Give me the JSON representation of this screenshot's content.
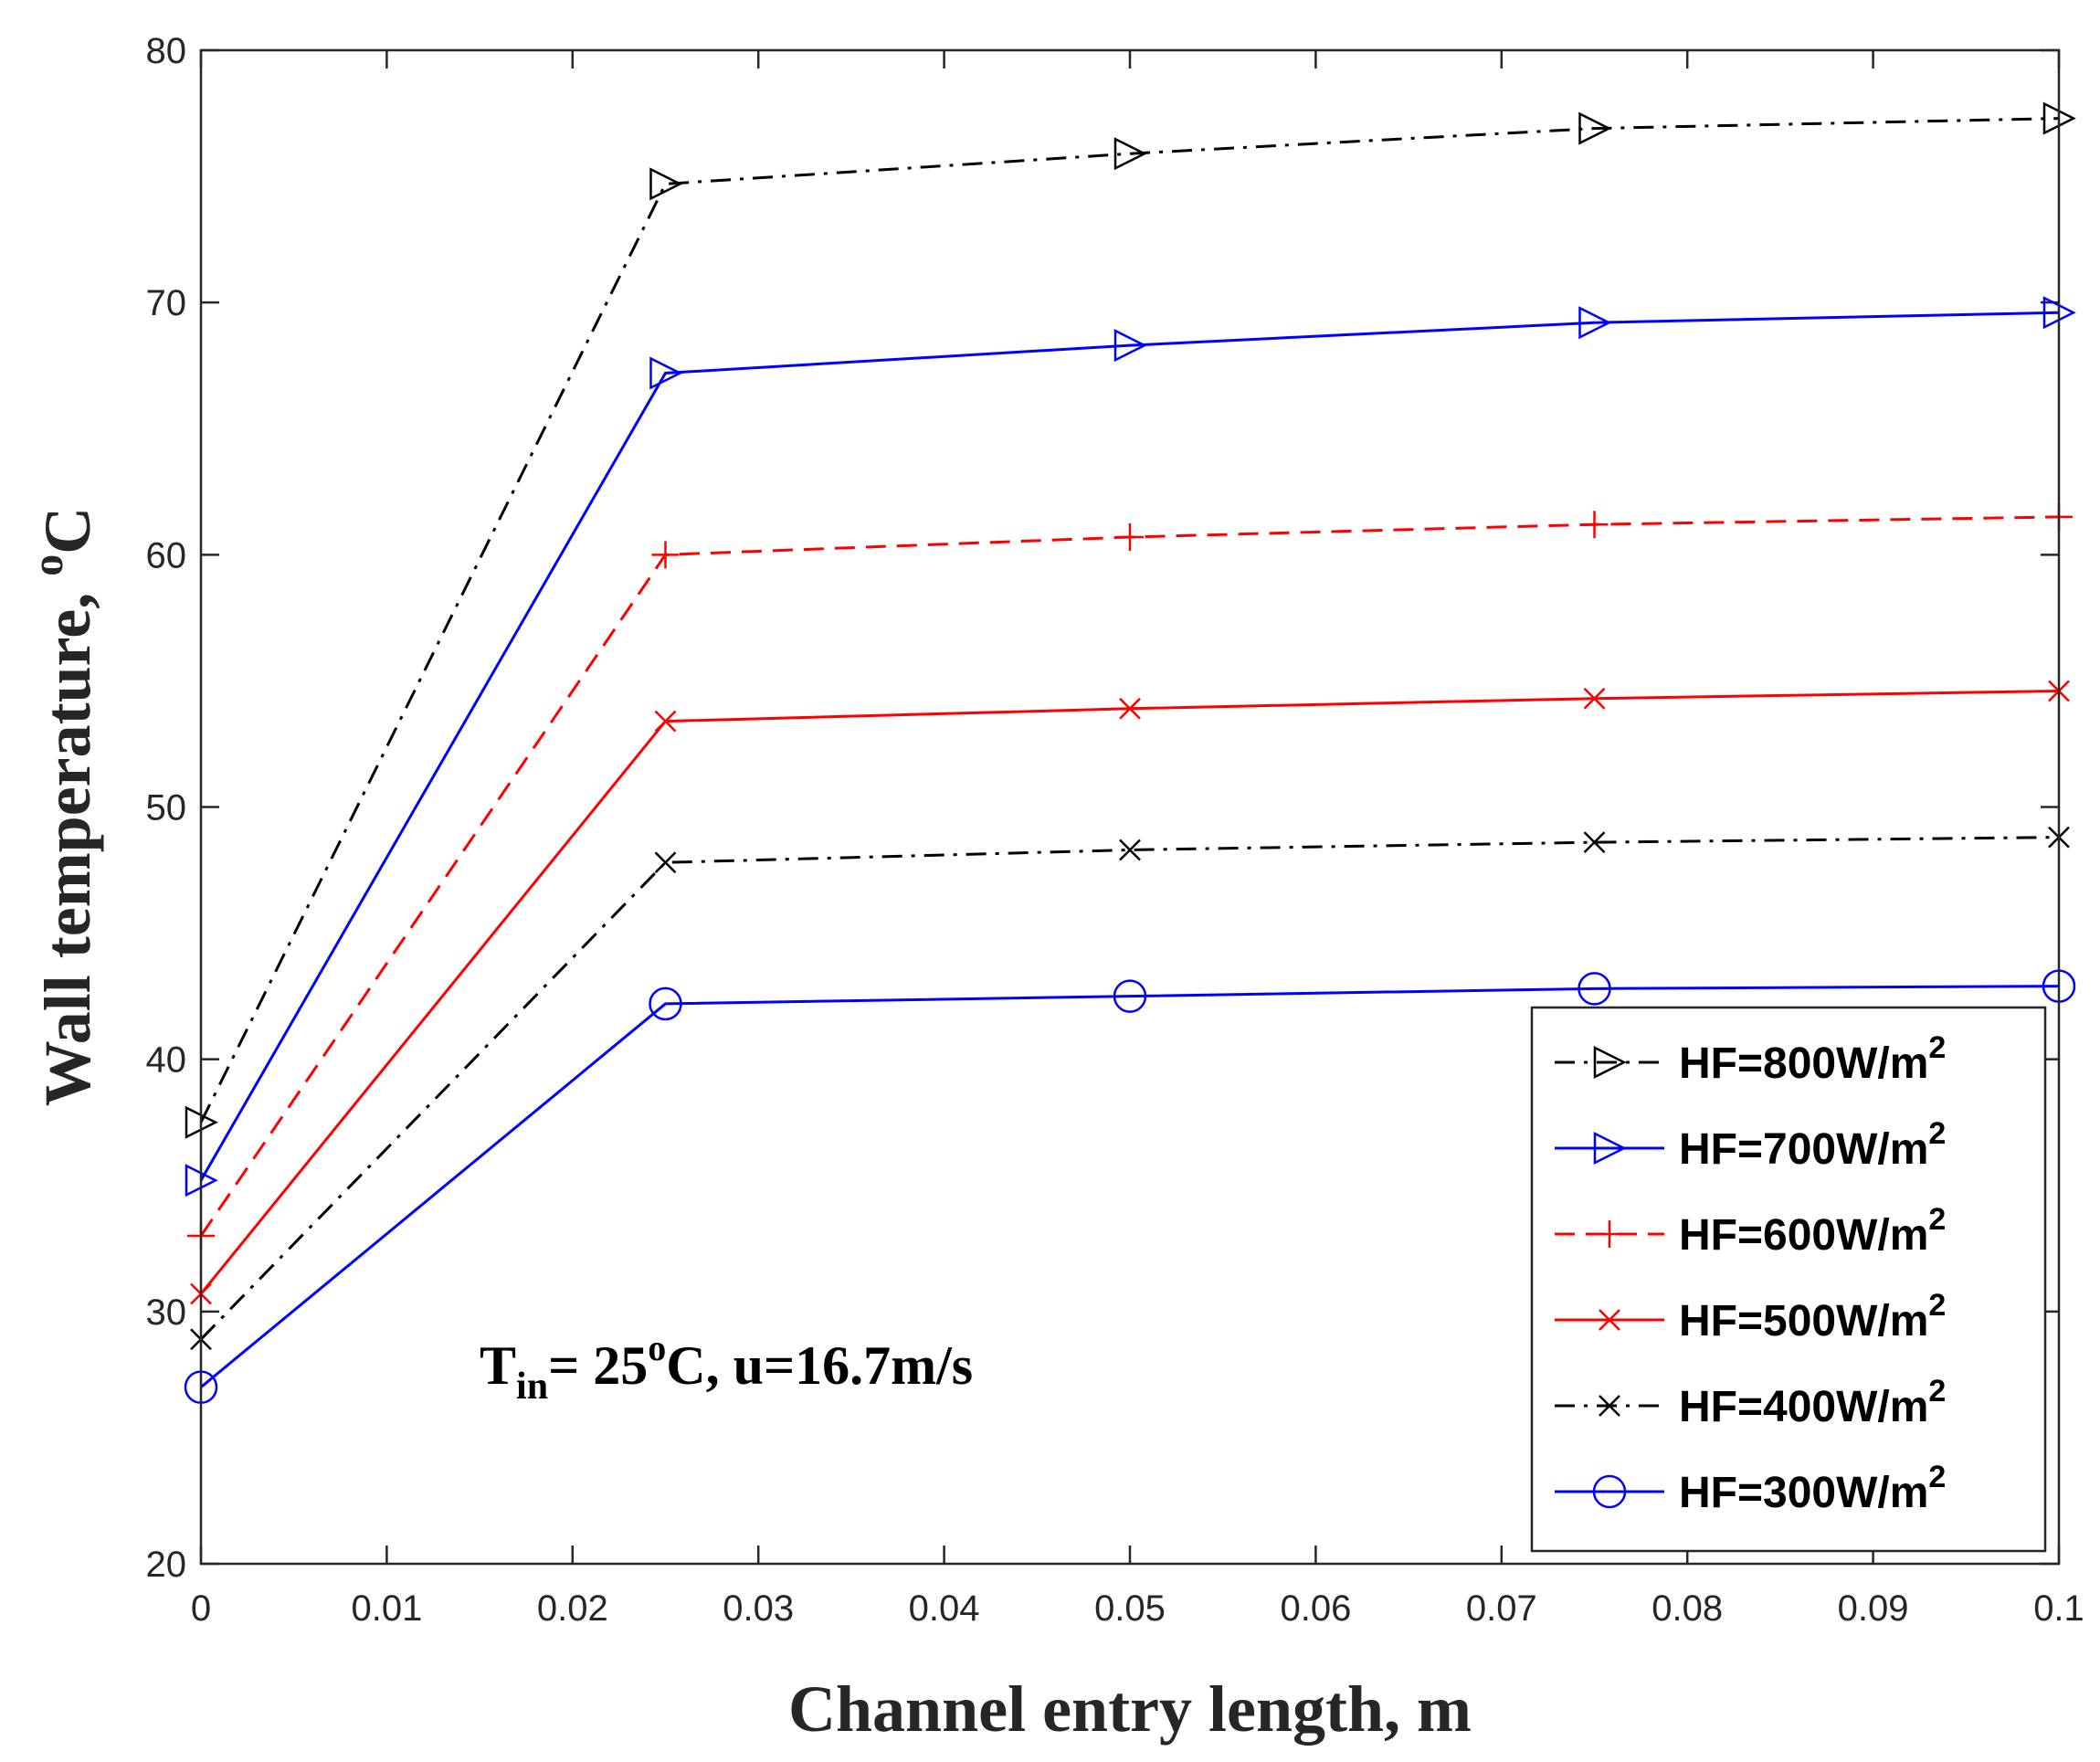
{
  "chart_data": {
    "type": "line",
    "title": "",
    "xlabel": "Channel entry length, m",
    "ylabel": "Wall temperature, °C",
    "ylabel_parts": {
      "main": "Wall temperature, ",
      "sup": "o",
      "unit": "C"
    },
    "xlim": [
      0,
      0.1
    ],
    "ylim": [
      20,
      80
    ],
    "xticks": [
      "0",
      "0.01",
      "0.02",
      "0.03",
      "0.04",
      "0.05",
      "0.06",
      "0.07",
      "0.08",
      "0.09",
      "0.1"
    ],
    "yticks": [
      "20",
      "30",
      "40",
      "50",
      "60",
      "70",
      "80"
    ],
    "grid": false,
    "legend_position": "bottom-right",
    "x": [
      0,
      0.025,
      0.05,
      0.075,
      0.1
    ],
    "series": [
      {
        "name": "HF=800W/m",
        "sup": "2",
        "color": "#000000",
        "dash": "dashdot",
        "marker": "triangle-right",
        "values": [
          37.5,
          74.7,
          75.9,
          76.9,
          77.3
        ]
      },
      {
        "name": "HF=700W/m",
        "sup": "2",
        "color": "#0000ff",
        "dash": "solid",
        "marker": "triangle-right",
        "values": [
          35.2,
          67.2,
          68.3,
          69.2,
          69.6
        ]
      },
      {
        "name": "HF=600W/m",
        "sup": "2",
        "color": "#ff0000",
        "dash": "dashed",
        "marker": "plus",
        "values": [
          33.0,
          60.0,
          60.7,
          61.2,
          61.5
        ]
      },
      {
        "name": "HF=500W/m",
        "sup": "2",
        "color": "#ff0000",
        "dash": "solid",
        "marker": "x",
        "values": [
          30.7,
          53.4,
          53.9,
          54.3,
          54.6
        ]
      },
      {
        "name": "HF=400W/m",
        "sup": "2",
        "color": "#000000",
        "dash": "dashdot",
        "marker": "x",
        "values": [
          28.9,
          47.8,
          48.3,
          48.6,
          48.8
        ]
      },
      {
        "name": "HF=300W/m",
        "sup": "2",
        "color": "#0000ff",
        "dash": "solid",
        "marker": "circle",
        "values": [
          27.0,
          42.2,
          42.5,
          42.8,
          42.9
        ]
      }
    ],
    "annotation": {
      "t": "T",
      "sub": "in",
      "eq": "= 25",
      "sup": "o",
      "rest": "C, u=16.7m/s"
    }
  }
}
